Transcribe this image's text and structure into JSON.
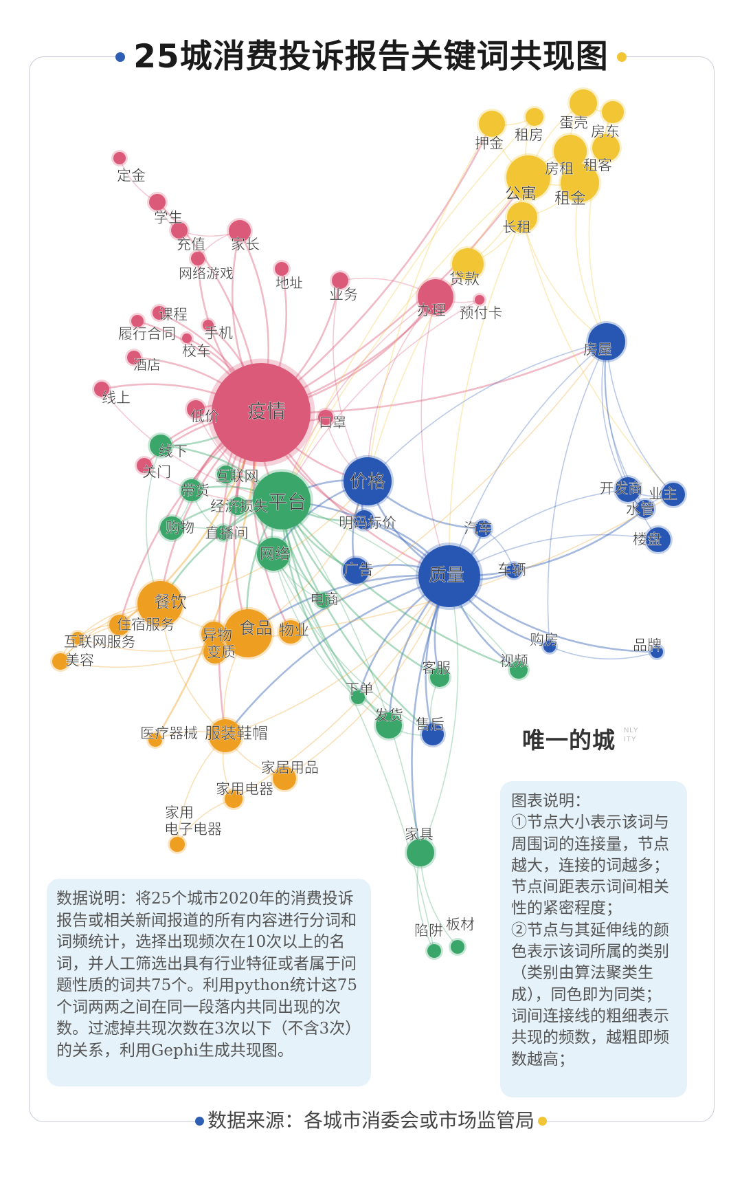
{
  "title": "25城消费投诉报告关键词共现图",
  "colors": {
    "red": "#dc5a79",
    "yellow": "#f2c534",
    "blue": "#2857b3",
    "green": "#3aa66a",
    "orange": "#ee9f22",
    "title_dot_left": "#2f5fb5",
    "title_dot_right": "#f2c534"
  },
  "brand": {
    "name": "唯一的城",
    "sub_line1": "NLY",
    "sub_line2": "ITY"
  },
  "source": "数据来源：各城市消委会或市场监管局",
  "notes": {
    "data": "数据说明：将25个城市2020年的消费投诉报告或相关新闻报道的所有内容进行分词和词频统计，选择出现频次在10次以上的名词，并人工筛选出具有行业特征或者属于问题性质的词共75个。利用python统计这75个词两两之间在同一段落内共同出现的次数。过滤掉共现次数在3次以下（不含3次）的关系，利用Gephi生成共现图。",
    "legend_title": "图表说明：",
    "legend_1": "①节点大小表示该词与周围词的连接量，节点越大，连接的词越多；节点间距表示词间相关性的紧密程度；",
    "legend_2": "②节点与其延伸线的颜色表示该词所属的类别（类别由算法聚类生成），同色即为同类；词间连接线的粗细表示共现的频数，越粗即频数越高；"
  },
  "nodes": [
    {
      "id": "疫情",
      "cat": "red"
    },
    {
      "id": "办理",
      "cat": "red"
    },
    {
      "id": "定金",
      "cat": "red"
    },
    {
      "id": "学生",
      "cat": "red"
    },
    {
      "id": "充值",
      "cat": "red"
    },
    {
      "id": "家长",
      "cat": "red"
    },
    {
      "id": "网络游戏",
      "cat": "red"
    },
    {
      "id": "地址",
      "cat": "red"
    },
    {
      "id": "业务",
      "cat": "red"
    },
    {
      "id": "预付卡",
      "cat": "red"
    },
    {
      "id": "课程",
      "cat": "red"
    },
    {
      "id": "履行合同",
      "cat": "red"
    },
    {
      "id": "手机",
      "cat": "red"
    },
    {
      "id": "校车",
      "cat": "red"
    },
    {
      "id": "酒店",
      "cat": "red"
    },
    {
      "id": "线上",
      "cat": "red"
    },
    {
      "id": "低价",
      "cat": "red"
    },
    {
      "id": "口罩",
      "cat": "red"
    },
    {
      "id": "关门",
      "cat": "red"
    },
    {
      "id": "押金",
      "cat": "yellow"
    },
    {
      "id": "租房",
      "cat": "yellow"
    },
    {
      "id": "蛋壳",
      "cat": "yellow"
    },
    {
      "id": "房东",
      "cat": "yellow"
    },
    {
      "id": "房租",
      "cat": "yellow"
    },
    {
      "id": "租客",
      "cat": "yellow"
    },
    {
      "id": "公寓",
      "cat": "yellow"
    },
    {
      "id": "租金",
      "cat": "yellow"
    },
    {
      "id": "长租",
      "cat": "yellow"
    },
    {
      "id": "贷款",
      "cat": "yellow"
    },
    {
      "id": "房屋",
      "cat": "blue"
    },
    {
      "id": "价格",
      "cat": "blue"
    },
    {
      "id": "明码标价",
      "cat": "blue"
    },
    {
      "id": "广告",
      "cat": "blue"
    },
    {
      "id": "质量",
      "cat": "blue"
    },
    {
      "id": "汽车",
      "cat": "blue"
    },
    {
      "id": "车辆",
      "cat": "blue"
    },
    {
      "id": "开发商",
      "cat": "blue"
    },
    {
      "id": "业主",
      "cat": "blue"
    },
    {
      "id": "水管",
      "cat": "blue"
    },
    {
      "id": "楼盘",
      "cat": "blue"
    },
    {
      "id": "购房",
      "cat": "blue"
    },
    {
      "id": "品牌",
      "cat": "blue"
    },
    {
      "id": "售后",
      "cat": "blue"
    },
    {
      "id": "平台",
      "cat": "green"
    },
    {
      "id": "线下",
      "cat": "green"
    },
    {
      "id": "互联网",
      "cat": "green"
    },
    {
      "id": "带货",
      "cat": "green"
    },
    {
      "id": "经济损失",
      "cat": "green"
    },
    {
      "id": "购物",
      "cat": "green"
    },
    {
      "id": "直播间",
      "cat": "green"
    },
    {
      "id": "网络",
      "cat": "green"
    },
    {
      "id": "电商",
      "cat": "green"
    },
    {
      "id": "客服",
      "cat": "green"
    },
    {
      "id": "视频",
      "cat": "green"
    },
    {
      "id": "下单",
      "cat": "green"
    },
    {
      "id": "发货",
      "cat": "green"
    },
    {
      "id": "家具",
      "cat": "green"
    },
    {
      "id": "陷阱",
      "cat": "green"
    },
    {
      "id": "板材",
      "cat": "green"
    },
    {
      "id": "餐饮",
      "cat": "orange"
    },
    {
      "id": "住宿服务",
      "cat": "orange"
    },
    {
      "id": "互联网服务",
      "cat": "orange"
    },
    {
      "id": "美容",
      "cat": "orange"
    },
    {
      "id": "异物",
      "cat": "orange"
    },
    {
      "id": "变质",
      "cat": "orange"
    },
    {
      "id": "食品",
      "cat": "orange"
    },
    {
      "id": "物业",
      "cat": "orange"
    },
    {
      "id": "医疗器械",
      "cat": "orange"
    },
    {
      "id": "服装鞋帽",
      "cat": "orange"
    },
    {
      "id": "家居用品",
      "cat": "orange"
    },
    {
      "id": "家用电器",
      "cat": "orange"
    },
    {
      "id": "家用电子电器",
      "cat": "orange"
    }
  ],
  "edges": [
    [
      "疫情",
      "平台"
    ],
    [
      "疫情",
      "价格"
    ],
    [
      "疫情",
      "质量"
    ],
    [
      "疫情",
      "办理"
    ],
    [
      "疫情",
      "线下"
    ],
    [
      "疫情",
      "餐饮"
    ],
    [
      "疫情",
      "食品"
    ],
    [
      "疫情",
      "线上"
    ],
    [
      "疫情",
      "低价"
    ],
    [
      "疫情",
      "口罩"
    ],
    [
      "疫情",
      "酒店"
    ],
    [
      "疫情",
      "课程"
    ],
    [
      "疫情",
      "履行合同"
    ],
    [
      "疫情",
      "手机"
    ],
    [
      "疫情",
      "校车"
    ],
    [
      "疫情",
      "关门"
    ],
    [
      "疫情",
      "业务"
    ],
    [
      "疫情",
      "地址"
    ],
    [
      "疫情",
      "家长"
    ],
    [
      "疫情",
      "学生"
    ],
    [
      "疫情",
      "公寓"
    ],
    [
      "疫情",
      "贷款"
    ],
    [
      "疫情",
      "房屋"
    ],
    [
      "疫情",
      "网络"
    ],
    [
      "疫情",
      "经济损失"
    ],
    [
      "疫情",
      "互联网"
    ],
    [
      "疫情",
      "带货"
    ],
    [
      "疫情",
      "购物"
    ],
    [
      "疫情",
      "住宿服务"
    ],
    [
      "疫情",
      "服装鞋帽"
    ],
    [
      "疫情",
      "明码标价"
    ],
    [
      "疫情",
      "直播间"
    ],
    [
      "疫情",
      "押金"
    ],
    [
      "疫情",
      "物业"
    ],
    [
      "定金",
      "学生"
    ],
    [
      "学生",
      "充值"
    ],
    [
      "充值",
      "家长"
    ],
    [
      "家长",
      "网络游戏"
    ],
    [
      "家长",
      "疫情"
    ],
    [
      "网络游戏",
      "疫情"
    ],
    [
      "办理",
      "预付卡"
    ],
    [
      "办理",
      "业务"
    ],
    [
      "办理",
      "价格"
    ],
    [
      "办理",
      "质量"
    ],
    [
      "办理",
      "贷款"
    ],
    [
      "办理",
      "平台"
    ],
    [
      "押金",
      "租房"
    ],
    [
      "押金",
      "公寓"
    ],
    [
      "租房",
      "公寓"
    ],
    [
      "蛋壳",
      "房东"
    ],
    [
      "蛋壳",
      "房租"
    ],
    [
      "蛋壳",
      "公寓"
    ],
    [
      "房东",
      "租客"
    ],
    [
      "房租",
      "公寓"
    ],
    [
      "房租",
      "租金"
    ],
    [
      "租客",
      "租金"
    ],
    [
      "公寓",
      "租金"
    ],
    [
      "公寓",
      "长租"
    ],
    [
      "长租",
      "租金"
    ],
    [
      "贷款",
      "长租"
    ],
    [
      "贷款",
      "公寓"
    ],
    [
      "公寓",
      "价格"
    ],
    [
      "租金",
      "房屋"
    ],
    [
      "长租",
      "房屋"
    ],
    [
      "房东",
      "房屋"
    ],
    [
      "公寓",
      "平台"
    ],
    [
      "长租",
      "质量"
    ],
    [
      "押金",
      "价格"
    ],
    [
      "租房",
      "平台"
    ],
    [
      "长租",
      "业主"
    ],
    [
      "房屋",
      "开发商"
    ],
    [
      "房屋",
      "业主"
    ],
    [
      "房屋",
      "楼盘"
    ],
    [
      "房屋",
      "水管"
    ],
    [
      "房屋",
      "质量"
    ],
    [
      "房屋",
      "价格"
    ],
    [
      "房屋",
      "购房"
    ],
    [
      "开发商",
      "业主"
    ],
    [
      "开发商",
      "水管"
    ],
    [
      "业主",
      "水管"
    ],
    [
      "楼盘",
      "质量"
    ],
    [
      "开发商",
      "质量"
    ],
    [
      "价格",
      "明码标价"
    ],
    [
      "价格",
      "质量"
    ],
    [
      "价格",
      "平台"
    ],
    [
      "价格",
      "广告"
    ],
    [
      "价格",
      "汽车"
    ],
    [
      "价格",
      "网络"
    ],
    [
      "质量",
      "明码标价"
    ],
    [
      "质量",
      "广告"
    ],
    [
      "质量",
      "汽车"
    ],
    [
      "质量",
      "车辆"
    ],
    [
      "质量",
      "售后"
    ],
    [
      "质量",
      "客服"
    ],
    [
      "质量",
      "发货"
    ],
    [
      "质量",
      "家具"
    ],
    [
      "质量",
      "购房"
    ],
    [
      "质量",
      "食品"
    ],
    [
      "质量",
      "物业"
    ],
    [
      "质量",
      "服装鞋帽"
    ],
    [
      "质量",
      "下单"
    ],
    [
      "质量",
      "视频"
    ],
    [
      "质量",
      "品牌"
    ],
    [
      "质量",
      "平台"
    ],
    [
      "质量",
      "水管"
    ],
    [
      "车辆",
      "汽车"
    ],
    [
      "购房",
      "品牌"
    ],
    [
      "平台",
      "线下"
    ],
    [
      "平台",
      "互联网"
    ],
    [
      "平台",
      "带货"
    ],
    [
      "平台",
      "经济损失"
    ],
    [
      "平台",
      "购物"
    ],
    [
      "平台",
      "直播间"
    ],
    [
      "平台",
      "网络"
    ],
    [
      "平台",
      "电商"
    ],
    [
      "平台",
      "明码标价"
    ],
    [
      "平台",
      "餐饮"
    ],
    [
      "平台",
      "食品"
    ],
    [
      "平台",
      "发货"
    ],
    [
      "平台",
      "客服"
    ],
    [
      "平台",
      "下单"
    ],
    [
      "平台",
      "售后"
    ],
    [
      "平台",
      "视频"
    ],
    [
      "平台",
      "广告"
    ],
    [
      "网络",
      "电商"
    ],
    [
      "网络",
      "发货"
    ],
    [
      "网络",
      "购物"
    ],
    [
      "网络",
      "售后"
    ],
    [
      "电商",
      "直播间"
    ],
    [
      "带货",
      "直播间"
    ],
    [
      "购物",
      "带货"
    ],
    [
      "客服",
      "售后"
    ],
    [
      "发货",
      "售后"
    ],
    [
      "发货",
      "下单"
    ],
    [
      "家具",
      "陷阱"
    ],
    [
      "家具",
      "板材"
    ],
    [
      "家具",
      "质量"
    ],
    [
      "家具",
      "平台"
    ],
    [
      "陷阱",
      "网络"
    ],
    [
      "视频",
      "平台"
    ],
    [
      "餐饮",
      "住宿服务"
    ],
    [
      "餐饮",
      "食品"
    ],
    [
      "餐饮",
      "互联网服务"
    ],
    [
      "餐饮",
      "美容"
    ],
    [
      "住宿服务",
      "互联网服务"
    ],
    [
      "住宿服务",
      "美容"
    ],
    [
      "互联网服务",
      "美容"
    ],
    [
      "食品",
      "异物"
    ],
    [
      "食品",
      "变质"
    ],
    [
      "异物",
      "变质"
    ],
    [
      "食品",
      "物业"
    ],
    [
      "服装鞋帽",
      "家居用品"
    ],
    [
      "服装鞋帽",
      "家用电器"
    ],
    [
      "服装鞋帽",
      "家用电子电器"
    ],
    [
      "服装鞋帽",
      "医疗器械"
    ],
    [
      "家用电器",
      "家用电子电器"
    ],
    [
      "食品",
      "服装鞋帽"
    ],
    [
      "餐饮",
      "服装鞋帽"
    ],
    [
      "服装鞋帽",
      "质量"
    ],
    [
      "家用电器",
      "质量"
    ],
    [
      "家居用品",
      "质量"
    ],
    [
      "美容",
      "食品"
    ],
    [
      "互联网服务",
      "食品"
    ],
    [
      "住宿服务",
      "疫情"
    ],
    [
      "餐饮",
      "价格"
    ],
    [
      "食品",
      "价格"
    ],
    [
      "物业",
      "房屋"
    ],
    [
      "物业",
      "业主"
    ],
    [
      "医疗器械",
      "疫情"
    ],
    [
      "线上",
      "平台"
    ],
    [
      "低价",
      "平台"
    ],
    [
      "关门",
      "平台"
    ],
    [
      "口罩",
      "价格"
    ],
    [
      "预付卡",
      "平台"
    ],
    [
      "业务",
      "价格"
    ],
    [
      "线下",
      "餐饮"
    ],
    [
      "线下",
      "疫情"
    ]
  ]
}
